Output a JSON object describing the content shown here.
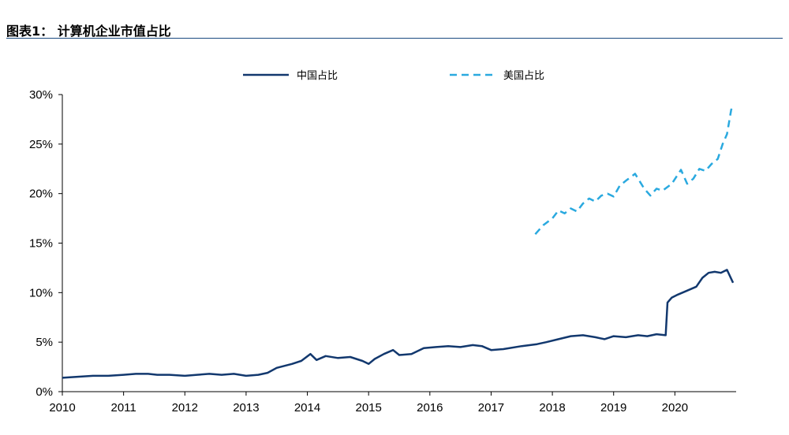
{
  "header": {
    "title": "图表1：  计算机企业市值占比"
  },
  "chart_data": {
    "type": "line",
    "title": "图表1：  计算机企业市值占比",
    "xlabel": "",
    "ylabel": "",
    "ylim": [
      0,
      30
    ],
    "xlim": [
      2010.0,
      2021.0
    ],
    "x_tick_labels": [
      "2010",
      "2011",
      "2012",
      "2013",
      "2014",
      "2015",
      "2016",
      "2017",
      "2018",
      "2019",
      "2020"
    ],
    "y_tick_labels": [
      "0%",
      "5%",
      "10%",
      "15%",
      "20%",
      "25%",
      "30%"
    ],
    "grid": false,
    "legend_position": "top-center",
    "series": [
      {
        "name": "中国占比",
        "color": "#12386e",
        "style": "solid",
        "x": [
          2010.0,
          2010.25,
          2010.5,
          2010.75,
          2011.0,
          2011.2,
          2011.4,
          2011.55,
          2011.75,
          2012.0,
          2012.2,
          2012.4,
          2012.6,
          2012.8,
          2013.0,
          2013.2,
          2013.35,
          2013.5,
          2013.75,
          2013.9,
          2014.05,
          2014.15,
          2014.3,
          2014.5,
          2014.7,
          2014.9,
          2015.0,
          2015.1,
          2015.25,
          2015.4,
          2015.5,
          2015.7,
          2015.9,
          2016.1,
          2016.3,
          2016.5,
          2016.7,
          2016.85,
          2017.0,
          2017.2,
          2017.5,
          2017.75,
          2017.9,
          2018.1,
          2018.3,
          2018.5,
          2018.7,
          2018.85,
          2019.0,
          2019.2,
          2019.4,
          2019.55,
          2019.7,
          2019.85,
          2019.88,
          2019.95,
          2020.05,
          2020.2,
          2020.35,
          2020.45,
          2020.55,
          2020.65,
          2020.75,
          2020.85,
          2020.95
        ],
        "y": [
          1.4,
          1.5,
          1.6,
          1.6,
          1.7,
          1.8,
          1.8,
          1.7,
          1.7,
          1.6,
          1.7,
          1.8,
          1.7,
          1.8,
          1.6,
          1.7,
          1.9,
          2.4,
          2.8,
          3.1,
          3.8,
          3.2,
          3.6,
          3.4,
          3.5,
          3.1,
          2.8,
          3.3,
          3.8,
          4.2,
          3.7,
          3.8,
          4.4,
          4.5,
          4.6,
          4.5,
          4.7,
          4.6,
          4.2,
          4.3,
          4.6,
          4.8,
          5.0,
          5.3,
          5.6,
          5.7,
          5.5,
          5.3,
          5.6,
          5.5,
          5.7,
          5.6,
          5.8,
          5.7,
          9.0,
          9.5,
          9.8,
          10.2,
          10.6,
          11.5,
          12.0,
          12.1,
          12.0,
          12.3,
          11.0
        ]
      },
      {
        "name": "美国占比",
        "color": "#2aa9df",
        "style": "dashed",
        "x": [
          2017.72,
          2017.85,
          2018.0,
          2018.1,
          2018.2,
          2018.3,
          2018.4,
          2018.5,
          2018.6,
          2018.7,
          2018.8,
          2018.9,
          2019.0,
          2019.1,
          2019.2,
          2019.35,
          2019.5,
          2019.6,
          2019.7,
          2019.8,
          2019.95,
          2020.1,
          2020.2,
          2020.3,
          2020.4,
          2020.5,
          2020.6,
          2020.7,
          2020.78,
          2020.85,
          2020.92,
          2020.97
        ],
        "y": [
          15.9,
          16.8,
          17.5,
          18.3,
          18.0,
          18.5,
          18.2,
          19.0,
          19.5,
          19.2,
          19.8,
          20.0,
          19.7,
          20.8,
          21.3,
          22.0,
          20.5,
          19.8,
          20.5,
          20.3,
          21.0,
          22.4,
          21.0,
          21.5,
          22.5,
          22.3,
          23.0,
          23.5,
          25.0,
          26.0,
          28.5,
          28.2
        ]
      }
    ]
  }
}
